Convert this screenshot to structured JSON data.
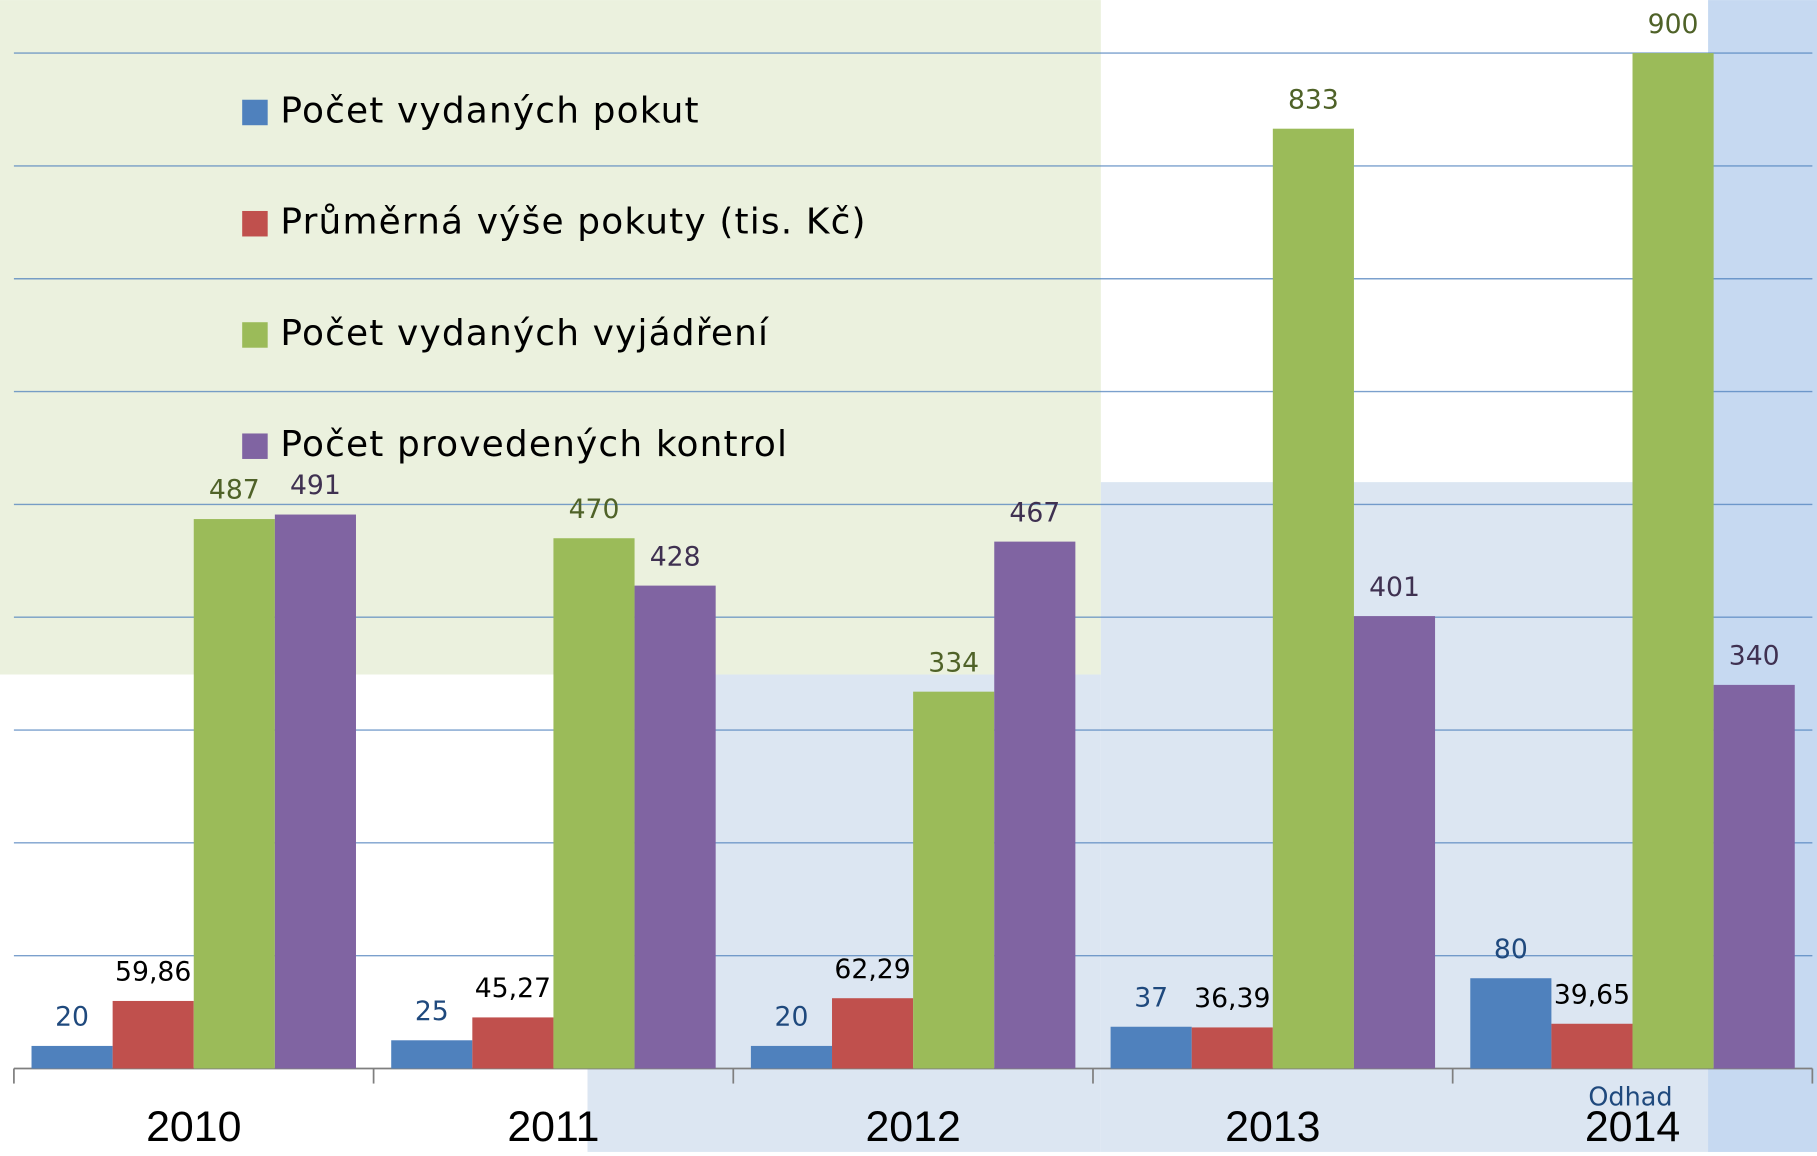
{
  "chart_data": {
    "type": "bar",
    "categories": [
      "2010",
      "2011",
      "2012",
      "2013",
      "2014"
    ],
    "series": [
      {
        "name": "Počet vydaných pokut",
        "color": "#4f81bd",
        "label_color": "#1f497d",
        "values": [
          20,
          25,
          20,
          37,
          80
        ]
      },
      {
        "name": "Průměrná výše pokuty (tis. Kč)",
        "color": "#c0504d",
        "label_color": "#000000",
        "values": [
          59.86,
          45.27,
          62.29,
          36.39,
          39.65
        ],
        "value_labels": [
          "59,86",
          "45,27",
          "62,29",
          "36,39",
          "39,65"
        ]
      },
      {
        "name": "Počet vydaných vyjádření",
        "color": "#9bbb59",
        "label_color": "#4f6228",
        "values": [
          487,
          470,
          334,
          833,
          900
        ]
      },
      {
        "name": "Počet provedených kontrol",
        "color": "#8064a2",
        "label_color": "#3f3151",
        "values": [
          491,
          428,
          467,
          401,
          340
        ]
      }
    ],
    "annotations": [
      "Odhad"
    ],
    "ylim": [
      0,
      947
    ],
    "yticks": [
      100,
      200,
      300,
      400,
      500,
      600,
      700,
      800,
      900
    ],
    "grid": true
  }
}
